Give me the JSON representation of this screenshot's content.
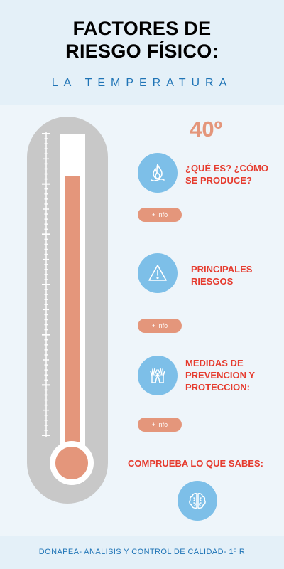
{
  "header": {
    "title_line1": "FACTORES DE",
    "title_line2": "RIESGO FÍSICO:",
    "subtitle": "LA TEMPERATURA"
  },
  "thermometer": {
    "temperature": "40º",
    "fill_fraction": 0.87
  },
  "sections": [
    {
      "label_line1": "¿QUÉ ES? ¿CÓMO",
      "label_line2": "SE PRODUCE?",
      "icon": "fire-icon",
      "button": "+ info"
    },
    {
      "label_line1": "PRINCIPALES",
      "label_line2": "RIESGOS",
      "icon": "warning-icon",
      "button": "+ info"
    },
    {
      "label_line1": "MEDIDAS DE",
      "label_line2": "PREVENCION Y",
      "label_line3": "PROTECCION:",
      "icon": "gloves-icon",
      "button": "+ info"
    }
  ],
  "quiz": {
    "label": "COMPRUEBA LO QUE SABES:",
    "icon": "brain-icon"
  },
  "footer": {
    "text": "DONAPEA- ANALISIS Y CONTROL DE CALIDAD- 1º R"
  },
  "colors": {
    "accent": "#e4967b",
    "icon_bg": "#7dbfe8",
    "label_red": "#e63b2e",
    "subtitle_blue": "#1f74b6"
  }
}
